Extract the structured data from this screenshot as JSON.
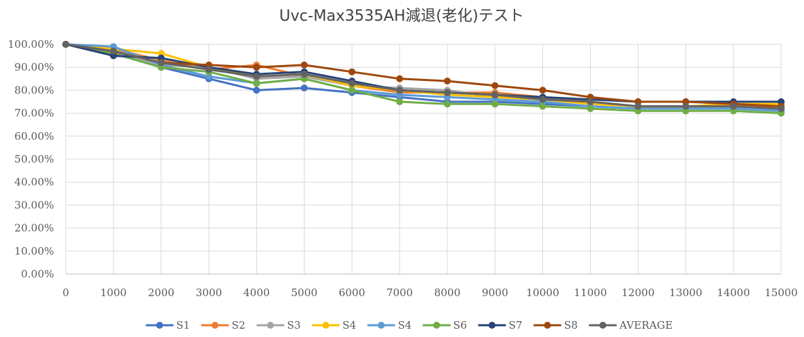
{
  "chart_data": {
    "type": "line",
    "title": "Uvc-Max3535AH減退(老化)テスト",
    "xlabel": "",
    "ylabel": "",
    "x": [
      "0",
      "1000",
      "2000",
      "3000",
      "4000",
      "5000",
      "6000",
      "7000",
      "8000",
      "9000",
      "10000",
      "11000",
      "12000",
      "13000",
      "14000",
      "15000"
    ],
    "y_ticks": [
      "0.00%",
      "10.00%",
      "20.00%",
      "30.00%",
      "40.00%",
      "50.00%",
      "60.00%",
      "70.00%",
      "80.00%",
      "90.00%",
      "100.00%"
    ],
    "ylim": [
      0,
      100
    ],
    "grid": true,
    "legend_position": "bottom",
    "series": [
      {
        "name": "S1",
        "color": "#4472C4",
        "values": [
          100,
          96,
          90,
          85,
          80,
          81,
          79,
          77,
          75,
          75,
          74,
          73,
          72,
          72,
          72,
          71
        ]
      },
      {
        "name": "S2",
        "color": "#ED7D31",
        "values": [
          100,
          98,
          93,
          89,
          91,
          86,
          82,
          79,
          79,
          79,
          77,
          75,
          73,
          72,
          73,
          73
        ]
      },
      {
        "name": "S3",
        "color": "#A5A5A5",
        "values": [
          100,
          97,
          91,
          90,
          85,
          86,
          82,
          81,
          80,
          77,
          76,
          75,
          73,
          73,
          72,
          72
        ]
      },
      {
        "name": "S4",
        "color": "#FFC000",
        "values": [
          100,
          98,
          96,
          90,
          86,
          87,
          82,
          80,
          78,
          77,
          76,
          74,
          73,
          73,
          74,
          74
        ]
      },
      {
        "name": "S4",
        "color": "#5B9BD5",
        "values": [
          100,
          99,
          91,
          86,
          83,
          85,
          80,
          78,
          77,
          76,
          75,
          73,
          72,
          72,
          72,
          71
        ]
      },
      {
        "name": "S6",
        "color": "#70AD47",
        "values": [
          100,
          96,
          90,
          88,
          83,
          85,
          80,
          75,
          74,
          74,
          73,
          72,
          71,
          71,
          71,
          70
        ]
      },
      {
        "name": "S7",
        "color": "#264478",
        "values": [
          100,
          95,
          94,
          90,
          87,
          88,
          84,
          80,
          79,
          78,
          77,
          76,
          75,
          75,
          75,
          75
        ]
      },
      {
        "name": "S8",
        "color": "#9E480E",
        "values": [
          100,
          97,
          92,
          91,
          90,
          91,
          88,
          85,
          84,
          82,
          80,
          77,
          75,
          75,
          74,
          73
        ]
      },
      {
        "name": "AVERAGE",
        "color": "#636363",
        "values": [
          100,
          97,
          92,
          89,
          86,
          87,
          83,
          80,
          79,
          78,
          76,
          75,
          73,
          73,
          73,
          72
        ]
      }
    ]
  }
}
